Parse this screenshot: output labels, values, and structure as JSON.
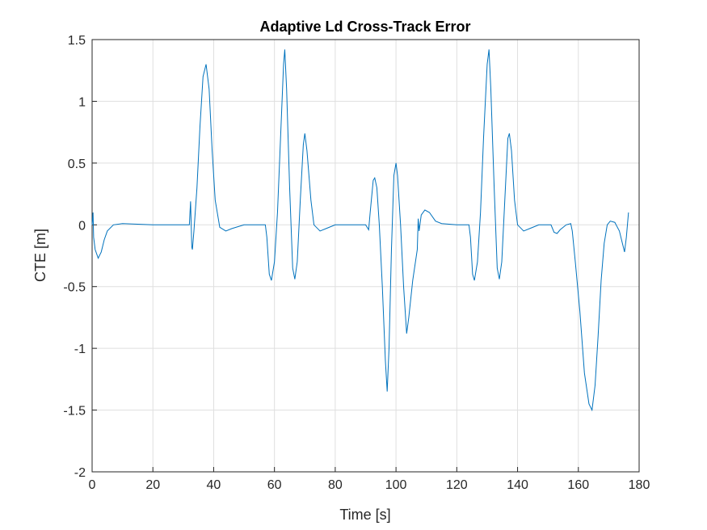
{
  "chart_data": {
    "type": "line",
    "title": "Adaptive Ld Cross-Track Error",
    "x_label": "Time [s]",
    "y_label": "CTE [m]",
    "xlim": [
      0,
      180
    ],
    "ylim": [
      -2,
      1.5
    ],
    "xticks": [
      0,
      20,
      40,
      60,
      80,
      100,
      120,
      140,
      160,
      180
    ],
    "yticks": [
      -2,
      -1.5,
      -1,
      -0.5,
      0,
      0.5,
      1,
      1.5
    ],
    "grid": true,
    "series": [
      {
        "color": "#0072bd",
        "x": [
          0,
          0.3,
          0.5,
          1,
          2,
          3,
          4,
          5,
          7,
          10,
          20,
          32,
          32.4,
          32.8,
          33,
          33.5,
          34.5,
          35.5,
          36.5,
          37.5,
          38.5,
          39.5,
          40.5,
          42,
          44,
          46,
          50,
          57,
          57.5,
          58.3,
          59,
          60,
          61,
          62,
          63,
          63.4,
          64,
          65,
          66,
          66.7,
          67.5,
          68.5,
          69.5,
          70,
          70.7,
          72,
          73,
          75,
          77,
          80,
          90,
          91,
          91.5,
          92.5,
          93,
          93.7,
          94.5,
          95.5,
          96.5,
          97.1,
          97.7,
          98.5,
          99.3,
          100,
          100.5,
          101.5,
          102.5,
          103.5,
          104.2,
          105.5,
          107,
          107.3,
          107.6,
          108.3,
          109.5,
          111,
          113,
          115,
          120,
          124,
          124.5,
          125.2,
          125.8,
          126.8,
          127.8,
          128.8,
          130,
          130.6,
          131.2,
          132.3,
          133.3,
          134,
          134.8,
          135.8,
          136.8,
          137.3,
          138,
          139,
          140,
          142,
          144,
          147,
          151,
          152,
          153,
          154,
          156,
          157.5,
          158,
          159,
          160.5,
          162,
          163.5,
          164.5,
          165.5,
          166.5,
          167.5,
          168.5,
          169.5,
          170.5,
          172,
          173.5,
          174.5,
          175.2,
          175.8,
          176.5
        ],
        "values": [
          0,
          0.1,
          -0.1,
          -0.2,
          -0.27,
          -0.22,
          -0.12,
          -0.05,
          0,
          0.01,
          0,
          0,
          0.19,
          -0.18,
          -0.2,
          -0.05,
          0.3,
          0.8,
          1.2,
          1.3,
          1.1,
          0.6,
          0.2,
          -0.02,
          -0.05,
          -0.03,
          0,
          0,
          -0.1,
          -0.4,
          -0.45,
          -0.3,
          0.1,
          0.7,
          1.3,
          1.42,
          1.1,
          0.3,
          -0.35,
          -0.44,
          -0.3,
          0.2,
          0.65,
          0.74,
          0.6,
          0.2,
          0,
          -0.05,
          -0.03,
          0,
          0,
          -0.04,
          0.1,
          0.36,
          0.38,
          0.3,
          0,
          -0.5,
          -1.1,
          -1.35,
          -1,
          -0.2,
          0.4,
          0.5,
          0.4,
          0,
          -0.5,
          -0.88,
          -0.75,
          -0.45,
          -0.2,
          0.05,
          -0.05,
          0.08,
          0.12,
          0.1,
          0.03,
          0.01,
          0,
          0,
          -0.1,
          -0.4,
          -0.45,
          -0.3,
          0.1,
          0.7,
          1.3,
          1.42,
          1.1,
          0.3,
          -0.35,
          -0.44,
          -0.3,
          0.2,
          0.7,
          0.74,
          0.6,
          0.2,
          0,
          -0.05,
          -0.03,
          0,
          0,
          -0.06,
          -0.07,
          -0.04,
          0,
          0.01,
          -0.05,
          -0.3,
          -0.7,
          -1.2,
          -1.45,
          -1.5,
          -1.3,
          -0.9,
          -0.45,
          -0.15,
          0,
          0.03,
          0.02,
          -0.05,
          -0.15,
          -0.22,
          -0.1,
          0.1
        ]
      }
    ]
  }
}
